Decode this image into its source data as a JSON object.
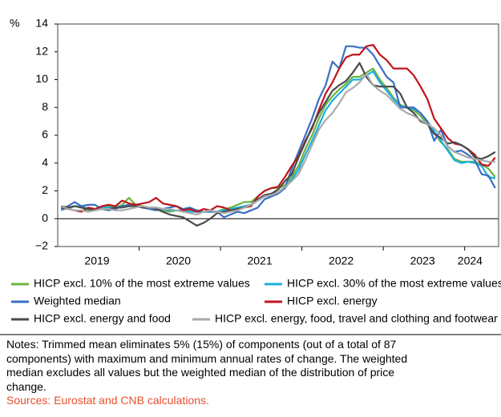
{
  "chart_data": {
    "type": "line",
    "y_axis_label": "%",
    "categories": [
      null,
      null,
      null,
      null,
      null,
      null,
      "2019",
      null,
      null,
      null,
      null,
      null,
      null,
      null,
      null,
      null,
      null,
      null,
      "2020",
      null,
      null,
      null,
      null,
      null,
      null,
      null,
      null,
      null,
      null,
      null,
      "2021",
      null,
      null,
      null,
      null,
      null,
      null,
      null,
      null,
      null,
      null,
      null,
      "2022",
      null,
      null,
      null,
      null,
      null,
      null,
      null,
      null,
      null,
      null,
      null,
      "2023",
      null,
      null,
      null,
      null,
      null,
      null,
      "2024",
      null,
      null,
      null
    ],
    "ylim": [
      -2,
      14
    ],
    "yticks": [
      {
        "value": -2,
        "label": "−2"
      },
      0,
      2,
      4,
      6,
      8,
      10,
      12,
      14
    ],
    "grid": false,
    "series": [
      {
        "name": "HICP excl. 10% of the most extreme values",
        "color": "#6cb33f",
        "values": [
          0.8,
          0.7,
          0.9,
          0.8,
          0.6,
          0.7,
          0.8,
          0.9,
          0.8,
          1.0,
          1.5,
          1.0,
          0.9,
          0.8,
          0.7,
          0.6,
          0.5,
          0.6,
          0.5,
          0.6,
          0.5,
          0.5,
          0.6,
          0.5,
          0.7,
          0.8,
          1.0,
          1.2,
          1.2,
          1.6,
          2.0,
          2.2,
          2.2,
          2.4,
          3.0,
          3.8,
          5.0,
          6.0,
          7.2,
          8.2,
          8.8,
          9.3,
          9.7,
          10.2,
          10.2,
          10.5,
          10.8,
          10.0,
          9.4,
          8.7,
          8.2,
          8.0,
          7.8,
          7.4,
          6.8,
          6.2,
          5.5,
          5.0,
          4.3,
          4.1,
          4.1,
          4.1,
          3.9,
          3.6,
          3.0
        ]
      },
      {
        "name": "HICP excl. 30% of the most extreme values",
        "color": "#1ab0e0",
        "values": [
          0.6,
          0.8,
          0.9,
          0.9,
          0.7,
          0.7,
          0.8,
          0.8,
          0.8,
          0.9,
          1.0,
          0.9,
          0.8,
          0.8,
          0.8,
          0.7,
          0.6,
          0.6,
          0.6,
          0.5,
          0.5,
          0.5,
          0.5,
          0.5,
          0.6,
          0.7,
          0.8,
          0.9,
          1.0,
          1.3,
          1.6,
          1.8,
          1.9,
          2.2,
          2.8,
          3.5,
          4.6,
          5.6,
          6.7,
          7.8,
          8.5,
          9.0,
          9.5,
          10.0,
          10.0,
          10.3,
          10.6,
          9.8,
          9.2,
          8.6,
          8.1,
          8.0,
          7.9,
          7.6,
          7.0,
          6.3,
          5.6,
          4.9,
          4.2,
          4.0,
          4.1,
          4.0,
          3.8,
          3.0,
          2.9
        ]
      },
      {
        "name": "Weighted median",
        "color": "#3a6fc4",
        "values": [
          0.7,
          0.9,
          1.2,
          0.9,
          1.0,
          1.0,
          0.7,
          0.6,
          0.7,
          0.9,
          1.0,
          0.9,
          0.8,
          0.7,
          0.6,
          0.7,
          0.8,
          0.9,
          0.7,
          0.8,
          0.6,
          0.5,
          0.5,
          0.5,
          0.1,
          0.3,
          0.5,
          0.4,
          0.6,
          0.8,
          1.4,
          1.6,
          1.8,
          2.2,
          3.6,
          4.8,
          6.0,
          7.2,
          8.6,
          9.6,
          11.3,
          10.8,
          12.4,
          12.4,
          12.3,
          12.3,
          11.8,
          11.0,
          10.2,
          9.8,
          8.0,
          8.0,
          8.0,
          7.6,
          7.0,
          5.6,
          6.4,
          5.2,
          4.8,
          4.9,
          4.6,
          4.2,
          3.2,
          3.1,
          2.2
        ]
      },
      {
        "name": "HICP excl. energy",
        "color": "#c0141c",
        "values": [
          0.8,
          0.7,
          0.6,
          0.5,
          0.8,
          0.7,
          0.9,
          1.0,
          0.9,
          1.3,
          1.1,
          1.0,
          1.1,
          1.2,
          1.5,
          1.1,
          1.0,
          0.9,
          0.6,
          0.7,
          0.5,
          0.7,
          0.6,
          0.9,
          0.8,
          0.6,
          0.6,
          0.8,
          0.9,
          1.6,
          2.0,
          2.2,
          2.3,
          3.0,
          3.8,
          4.5,
          5.6,
          6.5,
          7.8,
          9.0,
          9.8,
          10.8,
          11.6,
          11.8,
          11.8,
          12.4,
          12.5,
          11.8,
          11.4,
          10.8,
          10.8,
          10.8,
          10.3,
          9.5,
          8.6,
          7.2,
          6.5,
          5.8,
          5.4,
          5.3,
          5.0,
          4.6,
          3.9,
          3.8,
          4.4
        ]
      },
      {
        "name": "HICP excl. energy and food",
        "color": "#4a4a4a",
        "values": [
          0.9,
          0.8,
          0.9,
          0.8,
          0.7,
          0.6,
          0.7,
          0.7,
          0.8,
          0.8,
          0.9,
          0.9,
          0.8,
          0.8,
          0.7,
          0.5,
          0.3,
          0.2,
          0.1,
          -0.2,
          -0.5,
          -0.3,
          0.0,
          0.4,
          0.5,
          0.6,
          0.7,
          0.8,
          1.0,
          1.4,
          1.7,
          1.8,
          2.1,
          2.7,
          3.2,
          4.4,
          5.5,
          6.6,
          7.6,
          8.4,
          9.2,
          9.6,
          9.9,
          10.5,
          11.2,
          10.2,
          9.6,
          9.5,
          9.5,
          9.5,
          9.0,
          8.0,
          7.6,
          7.0,
          6.8,
          6.1,
          5.8,
          5.4,
          5.5,
          5.3,
          5.0,
          4.4,
          4.3,
          4.5,
          4.8
        ]
      },
      {
        "name": "HICP excl. energy, food, travel and clothing and footwear",
        "color": "#aaaaaa",
        "values": [
          0.9,
          0.7,
          0.6,
          0.6,
          0.5,
          0.6,
          0.7,
          0.7,
          0.6,
          0.6,
          0.7,
          0.8,
          0.9,
          0.8,
          0.8,
          0.7,
          0.7,
          0.6,
          0.5,
          0.4,
          0.3,
          0.5,
          0.6,
          0.5,
          0.4,
          0.5,
          0.6,
          0.8,
          1.0,
          1.3,
          1.6,
          1.7,
          1.9,
          2.3,
          2.7,
          3.2,
          4.2,
          5.3,
          6.4,
          7.1,
          7.6,
          8.3,
          9.1,
          9.4,
          9.8,
          10.4,
          9.6,
          9.2,
          8.9,
          8.4,
          7.9,
          7.6,
          7.4,
          7.1,
          6.8,
          6.5,
          6.0,
          5.2,
          4.8,
          4.6,
          4.4,
          4.3,
          4.2,
          4.1,
          4.1
        ]
      }
    ],
    "notes": [
      "Notes: Trimmed mean eliminates 5% (15%) of components (out of a total of 87",
      "components) with maximum and minimum annual rates of change. The weighted",
      "median excludes all values but the weighted median of the distribution of price",
      "change."
    ],
    "sources": "Sources: Eurostat and CNB calculations."
  }
}
